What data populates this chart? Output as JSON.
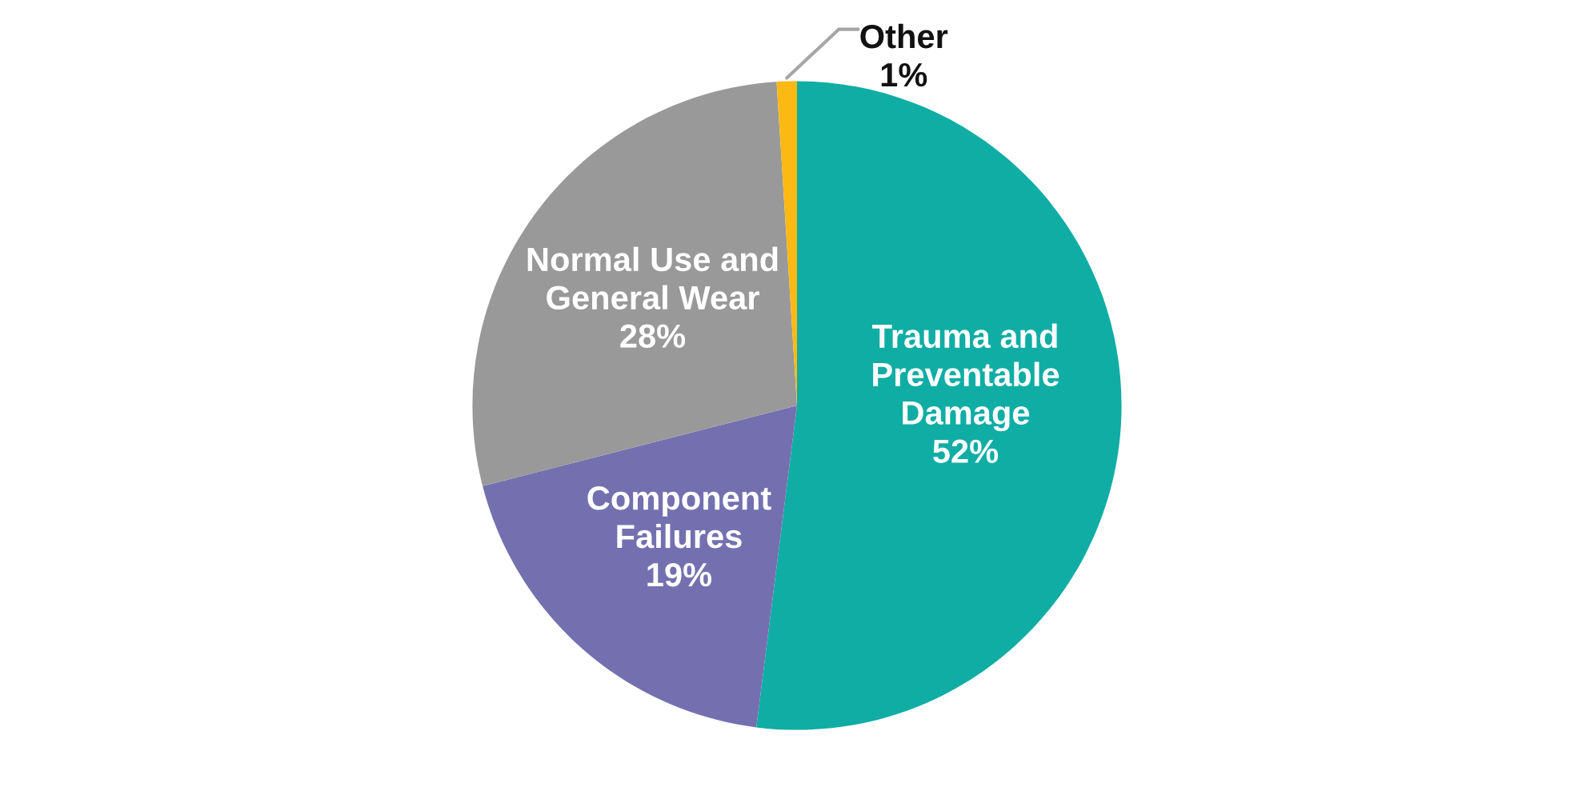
{
  "chart_data": {
    "type": "pie",
    "categories": [
      "Trauma and\nPreventable\nDamage",
      "Component\nFailures",
      "Normal Use and\nGeneral Wear",
      "Other"
    ],
    "values": [
      52,
      19,
      28,
      1
    ],
    "value_labels": [
      "52%",
      "19%",
      "28%",
      "1%"
    ],
    "colors": [
      "#10ada5",
      "#7470b0",
      "#999999",
      "#fdb913"
    ],
    "legend": false
  }
}
